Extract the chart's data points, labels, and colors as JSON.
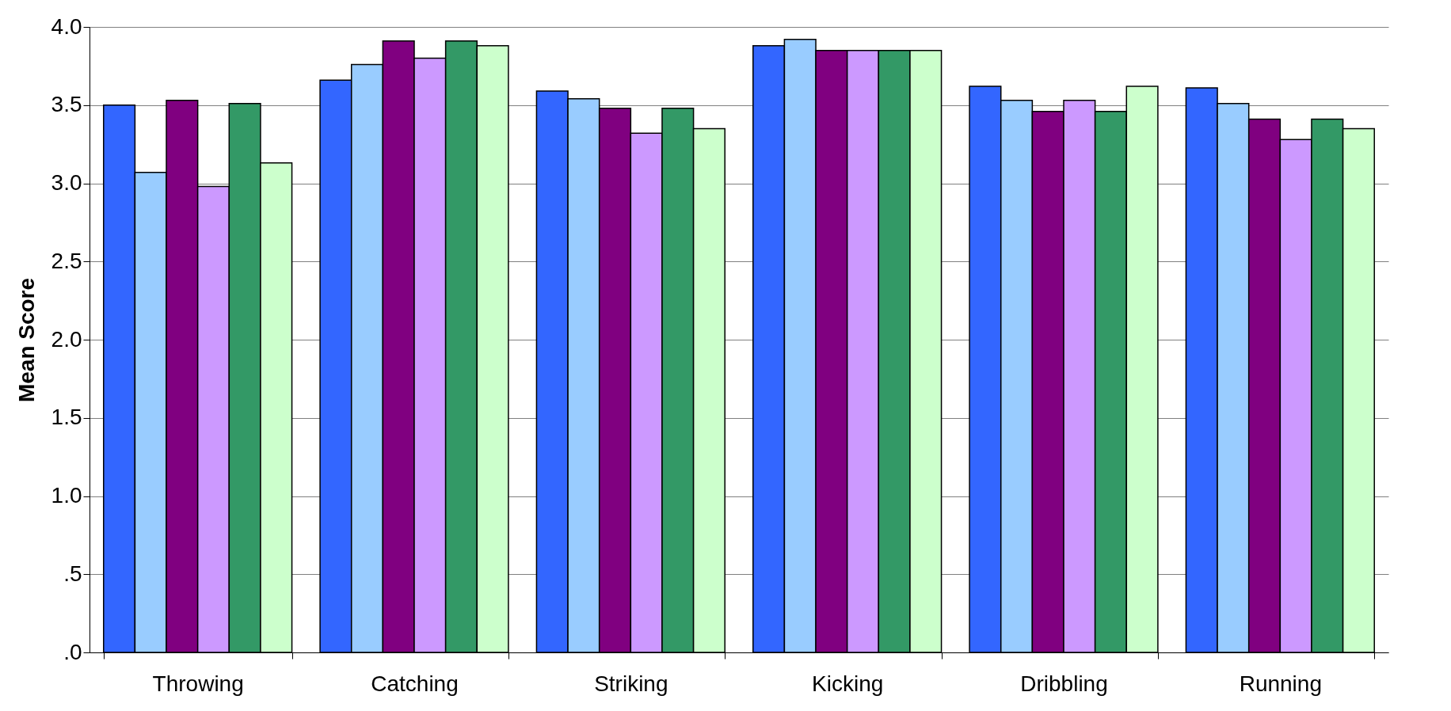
{
  "chart_data": {
    "type": "bar",
    "ylabel": "Mean Score",
    "categories": [
      "Throwing",
      "Catching",
      "Striking",
      "Kicking",
      "Dribbling",
      "Running"
    ],
    "series": [
      {
        "color": "#3366ff",
        "values": [
          3.5,
          3.66,
          3.59,
          3.88,
          3.62,
          3.61
        ]
      },
      {
        "color": "#99ccff",
        "values": [
          3.07,
          3.76,
          3.54,
          3.92,
          3.53,
          3.51
        ]
      },
      {
        "color": "#800080",
        "values": [
          3.53,
          3.91,
          3.48,
          3.85,
          3.46,
          3.41
        ]
      },
      {
        "color": "#cc99ff",
        "values": [
          2.98,
          3.8,
          3.32,
          3.85,
          3.53,
          3.28
        ]
      },
      {
        "color": "#339966",
        "values": [
          3.51,
          3.91,
          3.48,
          3.85,
          3.46,
          3.41
        ]
      },
      {
        "color": "#ccffcc",
        "values": [
          3.13,
          3.88,
          3.35,
          3.85,
          3.62,
          3.35
        ]
      }
    ],
    "ylim": [
      0,
      4
    ],
    "yticks": [
      {
        "value": 0,
        "label": ".0"
      },
      {
        "value": 0.5,
        "label": ".5"
      },
      {
        "value": 1,
        "label": "1.0"
      },
      {
        "value": 1.5,
        "label": "1.5"
      },
      {
        "value": 2,
        "label": "2.0"
      },
      {
        "value": 2.5,
        "label": "2.5"
      },
      {
        "value": 3,
        "label": "3.0"
      },
      {
        "value": 3.5,
        "label": "3.5"
      },
      {
        "value": 4,
        "label": "4.0"
      }
    ],
    "grid": "y",
    "legend": false
  }
}
